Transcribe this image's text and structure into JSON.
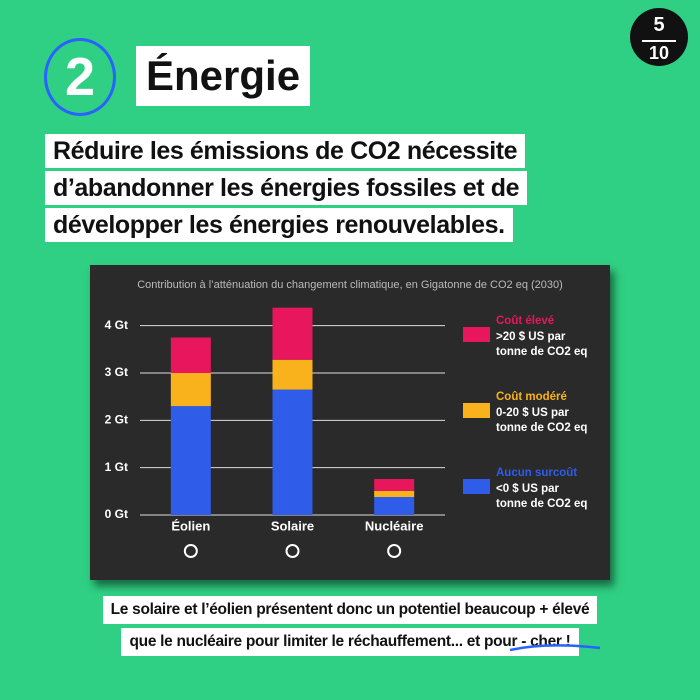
{
  "header": {
    "page_number": "5",
    "page_total": "10",
    "section_number": "2",
    "section_title": "Énergie",
    "headline": [
      "Réduire les émissions de CO2 nécessite",
      "d’abandonner les énergies fossiles et de",
      "développer les énergies renouvelables."
    ]
  },
  "chart_data": {
    "type": "stacked-bar",
    "title": "Contribution à l’atténuation du changement climatique, en Gigatonne de CO2 eq (2030)",
    "categories": [
      "Éolien",
      "Solaire",
      "Nucléaire"
    ],
    "series": [
      {
        "name": "Aucun surcoût",
        "description": [
          "<0 $ US par",
          "tonne de CO2 eq"
        ],
        "color": "#2f5ce8",
        "values": [
          2.3,
          2.65,
          0.38
        ]
      },
      {
        "name": "Coût modéré",
        "description": [
          "0-20 $ US par",
          "tonne de CO2 eq"
        ],
        "color": "#f9b21b",
        "values": [
          0.7,
          0.63,
          0.13
        ]
      },
      {
        "name": "Coût élevé",
        "description": [
          ">20 $ US par",
          "tonne de CO2 eq"
        ],
        "color": "#e8175d",
        "values": [
          0.75,
          1.1,
          0.25
        ]
      }
    ],
    "ylim": [
      0,
      4.5
    ],
    "yticks": [
      {
        "value": 0,
        "label": "0 Gt"
      },
      {
        "value": 1,
        "label": "1 Gt"
      },
      {
        "value": 2,
        "label": "2 Gt"
      },
      {
        "value": 3,
        "label": "3 Gt"
      },
      {
        "value": 4,
        "label": "4 Gt"
      }
    ],
    "grid": true
  },
  "footer": [
    "Le solaire et l’éolien présentent donc un potentiel beaucoup + élevé",
    "que le nucléaire pour limiter le réchauffement... et pour - cher !"
  ]
}
